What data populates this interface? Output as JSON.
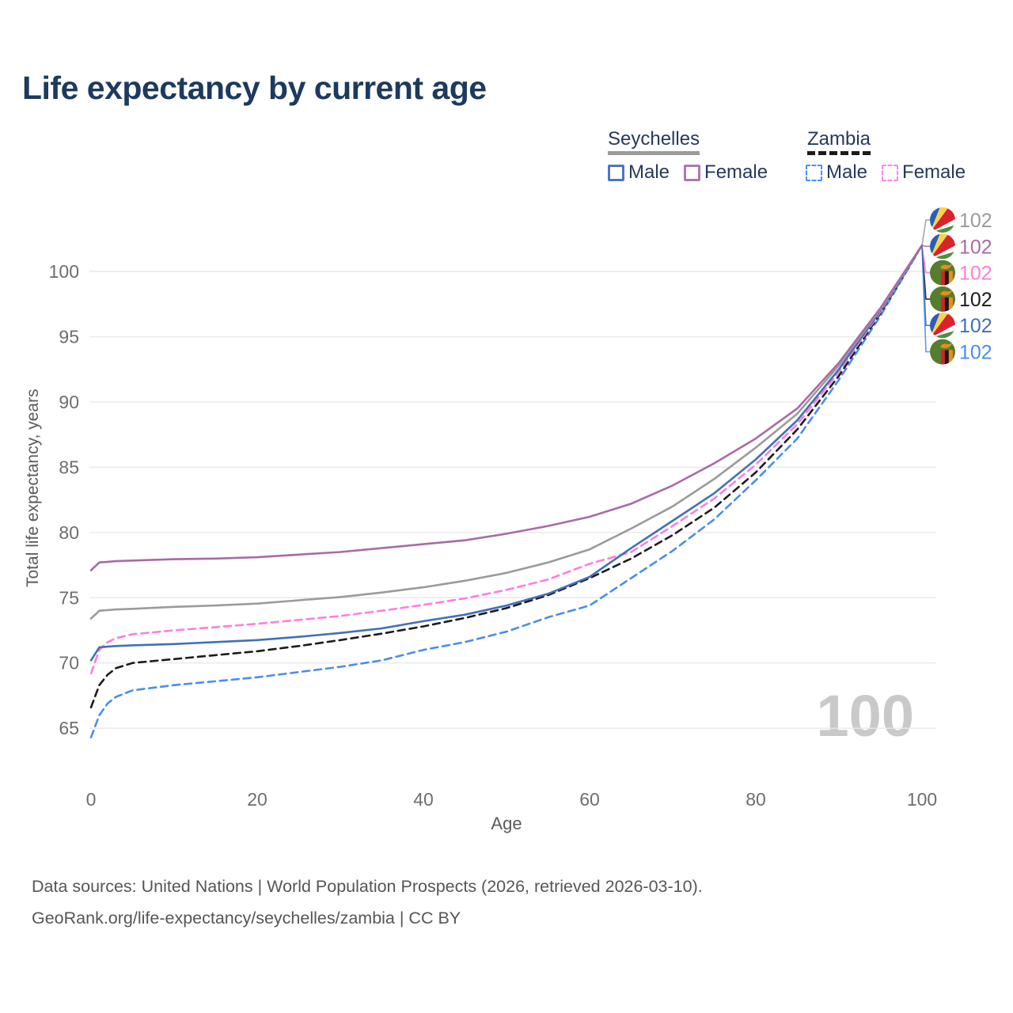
{
  "title": "Life expectancy by current age",
  "watermark": "100",
  "footer": {
    "line1": "Data sources: United Nations | World Population Prospects (2026, retrieved 2026-03-10).",
    "line2": "GeoRank.org/life-expectancy/seychelles/zambia | CC BY"
  },
  "legend": {
    "groups": [
      {
        "name": "Seychelles",
        "line_style": "solid",
        "rule_color": "#9b9b9b",
        "items": [
          {
            "label": "Male",
            "color": "#4a77be"
          },
          {
            "label": "Female",
            "color": "#b176ad"
          }
        ]
      },
      {
        "name": "Zambia",
        "line_style": "dashed",
        "rule_color": "#1c1c1c",
        "items": [
          {
            "label": "Male",
            "color": "#4a8df5"
          },
          {
            "label": "Female",
            "color": "#ff85e8"
          }
        ]
      }
    ]
  },
  "chart_data": {
    "type": "line",
    "title": "Life expectancy by current age",
    "xlabel": "Age",
    "ylabel": "Total life expectancy, years",
    "xlim": [
      0,
      100
    ],
    "ylim": [
      63.5,
      103
    ],
    "x_ticks": [
      0,
      20,
      40,
      60,
      80,
      100
    ],
    "y_ticks": [
      65,
      70,
      75,
      80,
      85,
      90,
      95,
      100
    ],
    "grid": "horizontal",
    "grid_color": "#e9e9e9",
    "tick_color": "#6e6e6e",
    "x": [
      0,
      1,
      2,
      3,
      5,
      10,
      15,
      20,
      25,
      30,
      35,
      40,
      45,
      50,
      55,
      60,
      65,
      70,
      75,
      80,
      85,
      90,
      95,
      100
    ],
    "series": [
      {
        "name": "Zambia Male",
        "country": "Zambia",
        "sex": "Male",
        "color": "#4a8df0",
        "dash": true,
        "flag": "zambia",
        "end_label": "102",
        "end_row": 5,
        "values": [
          64.3,
          66.0,
          66.9,
          67.4,
          67.9,
          68.3,
          68.6,
          68.9,
          69.3,
          69.7,
          70.2,
          71.0,
          71.6,
          72.4,
          73.5,
          74.4,
          76.5,
          78.6,
          81.0,
          84.0,
          87.2,
          91.7,
          96.6,
          102
        ]
      },
      {
        "name": "Zambia Total",
        "country": "Zambia",
        "sex": "All",
        "color": "#1c1c1c",
        "dash": true,
        "flag": "zambia",
        "end_label": "102",
        "end_row": 3,
        "values": [
          66.6,
          68.3,
          69.1,
          69.6,
          70.0,
          70.3,
          70.6,
          70.9,
          71.3,
          71.75,
          72.25,
          72.8,
          73.45,
          74.2,
          75.2,
          76.5,
          78.0,
          79.8,
          81.9,
          84.6,
          87.9,
          92.0,
          96.8,
          102
        ]
      },
      {
        "name": "Zambia Female",
        "country": "Zambia",
        "sex": "Female",
        "color": "#ff7de1",
        "dash": true,
        "flag": "zambia",
        "end_label": "102",
        "end_row": 2,
        "values": [
          69.2,
          71.0,
          71.6,
          71.9,
          72.2,
          72.5,
          72.75,
          73.0,
          73.3,
          73.6,
          74.0,
          74.45,
          74.95,
          75.6,
          76.4,
          77.6,
          78.5,
          80.5,
          82.6,
          85.2,
          88.3,
          92.3,
          96.9,
          102
        ]
      },
      {
        "name": "Seychelles Male",
        "country": "Seychelles",
        "sex": "Male",
        "color": "#4170b8",
        "dash": false,
        "flag": "seychelles",
        "end_label": "102",
        "end_row": 4,
        "values": [
          70.2,
          71.2,
          71.25,
          71.3,
          71.35,
          71.45,
          71.6,
          71.75,
          72.0,
          72.3,
          72.65,
          73.2,
          73.7,
          74.4,
          75.3,
          76.6,
          78.8,
          80.9,
          83.0,
          85.6,
          88.6,
          92.5,
          97.0,
          102
        ]
      },
      {
        "name": "Seychelles Total",
        "country": "Seychelles",
        "sex": "All",
        "color": "#9b9b9b",
        "dash": false,
        "flag": "seychelles",
        "end_label": "102",
        "end_row": 0,
        "values": [
          73.4,
          74.0,
          74.05,
          74.1,
          74.15,
          74.3,
          74.4,
          74.55,
          74.8,
          75.05,
          75.4,
          75.8,
          76.3,
          76.9,
          77.7,
          78.7,
          80.3,
          82.0,
          84.1,
          86.5,
          89.1,
          92.8,
          97.1,
          102
        ]
      },
      {
        "name": "Seychelles Female",
        "country": "Seychelles",
        "sex": "Female",
        "color": "#a86ba6",
        "dash": false,
        "flag": "seychelles",
        "end_label": "102",
        "end_row": 1,
        "values": [
          77.1,
          77.7,
          77.75,
          77.8,
          77.85,
          77.95,
          78.0,
          78.1,
          78.3,
          78.5,
          78.8,
          79.1,
          79.4,
          79.9,
          80.5,
          81.2,
          82.2,
          83.6,
          85.3,
          87.2,
          89.5,
          93.0,
          97.2,
          102
        ]
      }
    ],
    "legend_position": "top-right",
    "end_value_age": 100
  }
}
